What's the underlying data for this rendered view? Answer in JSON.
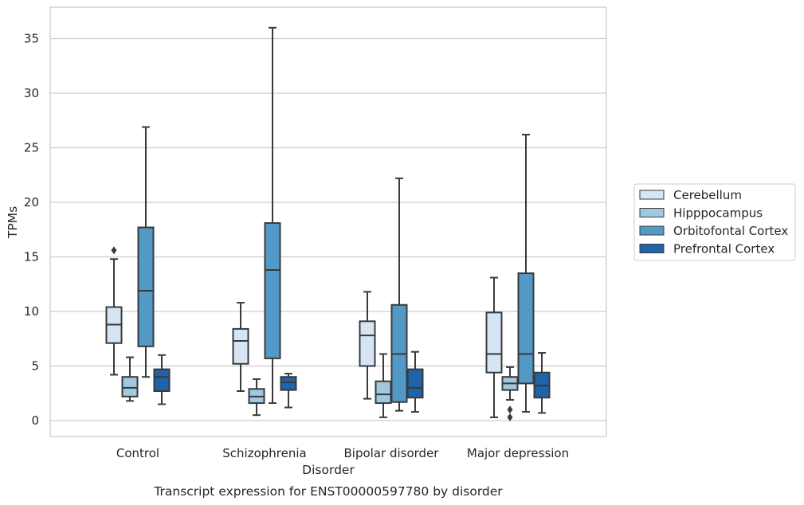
{
  "chart_data": {
    "type": "box",
    "title": "",
    "xlabel": "Disorder",
    "ylabel": "TPMs",
    "caption": "Transcript expression for ENST00000597780 by disorder",
    "ylim": [
      -1.5,
      37.5
    ],
    "yticks": [
      0,
      5,
      10,
      15,
      20,
      25,
      30,
      35
    ],
    "grid": "horizontal",
    "legend_position": "right",
    "categories": [
      "Control",
      "Schizophrenia",
      "Bipolar disorder",
      "Major depression"
    ],
    "series": [
      {
        "name": "Cerebellum",
        "color": "#d6e5f4",
        "boxes": [
          {
            "whisker_low": 4.2,
            "q1": 7.1,
            "median": 8.8,
            "q3": 10.4,
            "whisker_high": 14.8,
            "outliers": [
              15.6
            ]
          },
          {
            "whisker_low": 2.7,
            "q1": 5.2,
            "median": 7.3,
            "q3": 8.4,
            "whisker_high": 10.8,
            "outliers": []
          },
          {
            "whisker_low": 2.0,
            "q1": 5.0,
            "median": 7.8,
            "q3": 9.1,
            "whisker_high": 11.8,
            "outliers": []
          },
          {
            "whisker_low": 0.3,
            "q1": 4.4,
            "median": 6.1,
            "q3": 9.9,
            "whisker_high": 13.1,
            "outliers": []
          }
        ]
      },
      {
        "name": "Hipppocampus",
        "color": "#a0c8e0",
        "boxes": [
          {
            "whisker_low": 1.8,
            "q1": 2.2,
            "median": 3.0,
            "q3": 4.0,
            "whisker_high": 5.8,
            "outliers": []
          },
          {
            "whisker_low": 0.5,
            "q1": 1.6,
            "median": 2.2,
            "q3": 2.9,
            "whisker_high": 3.8,
            "outliers": []
          },
          {
            "whisker_low": 0.3,
            "q1": 1.6,
            "median": 2.4,
            "q3": 3.6,
            "whisker_high": 6.1,
            "outliers": []
          },
          {
            "whisker_low": 1.9,
            "q1": 2.8,
            "median": 3.4,
            "q3": 4.0,
            "whisker_high": 4.9,
            "outliers": [
              0.3,
              1.0
            ]
          }
        ]
      },
      {
        "name": "Orbitofontal Cortex",
        "color": "#5399c6",
        "boxes": [
          {
            "whisker_low": 4.0,
            "q1": 6.8,
            "median": 11.9,
            "q3": 17.7,
            "whisker_high": 26.9,
            "outliers": []
          },
          {
            "whisker_low": 1.6,
            "q1": 5.7,
            "median": 13.8,
            "q3": 18.1,
            "whisker_high": 36.0,
            "outliers": []
          },
          {
            "whisker_low": 0.9,
            "q1": 1.7,
            "median": 6.1,
            "q3": 10.6,
            "whisker_high": 22.2,
            "outliers": []
          },
          {
            "whisker_low": 0.8,
            "q1": 3.4,
            "median": 6.1,
            "q3": 13.5,
            "whisker_high": 26.2,
            "outliers": []
          }
        ]
      },
      {
        "name": "Prefrontal Cortex",
        "color": "#1f63a8",
        "boxes": [
          {
            "whisker_low": 1.5,
            "q1": 2.7,
            "median": 4.0,
            "q3": 4.7,
            "whisker_high": 6.0,
            "outliers": []
          },
          {
            "whisker_low": 1.2,
            "q1": 2.8,
            "median": 3.5,
            "q3": 4.0,
            "whisker_high": 4.3,
            "outliers": []
          },
          {
            "whisker_low": 0.8,
            "q1": 2.1,
            "median": 3.0,
            "q3": 4.7,
            "whisker_high": 6.3,
            "outliers": []
          },
          {
            "whisker_low": 0.7,
            "q1": 2.1,
            "median": 3.2,
            "q3": 4.4,
            "whisker_high": 6.2,
            "outliers": []
          }
        ]
      }
    ]
  }
}
